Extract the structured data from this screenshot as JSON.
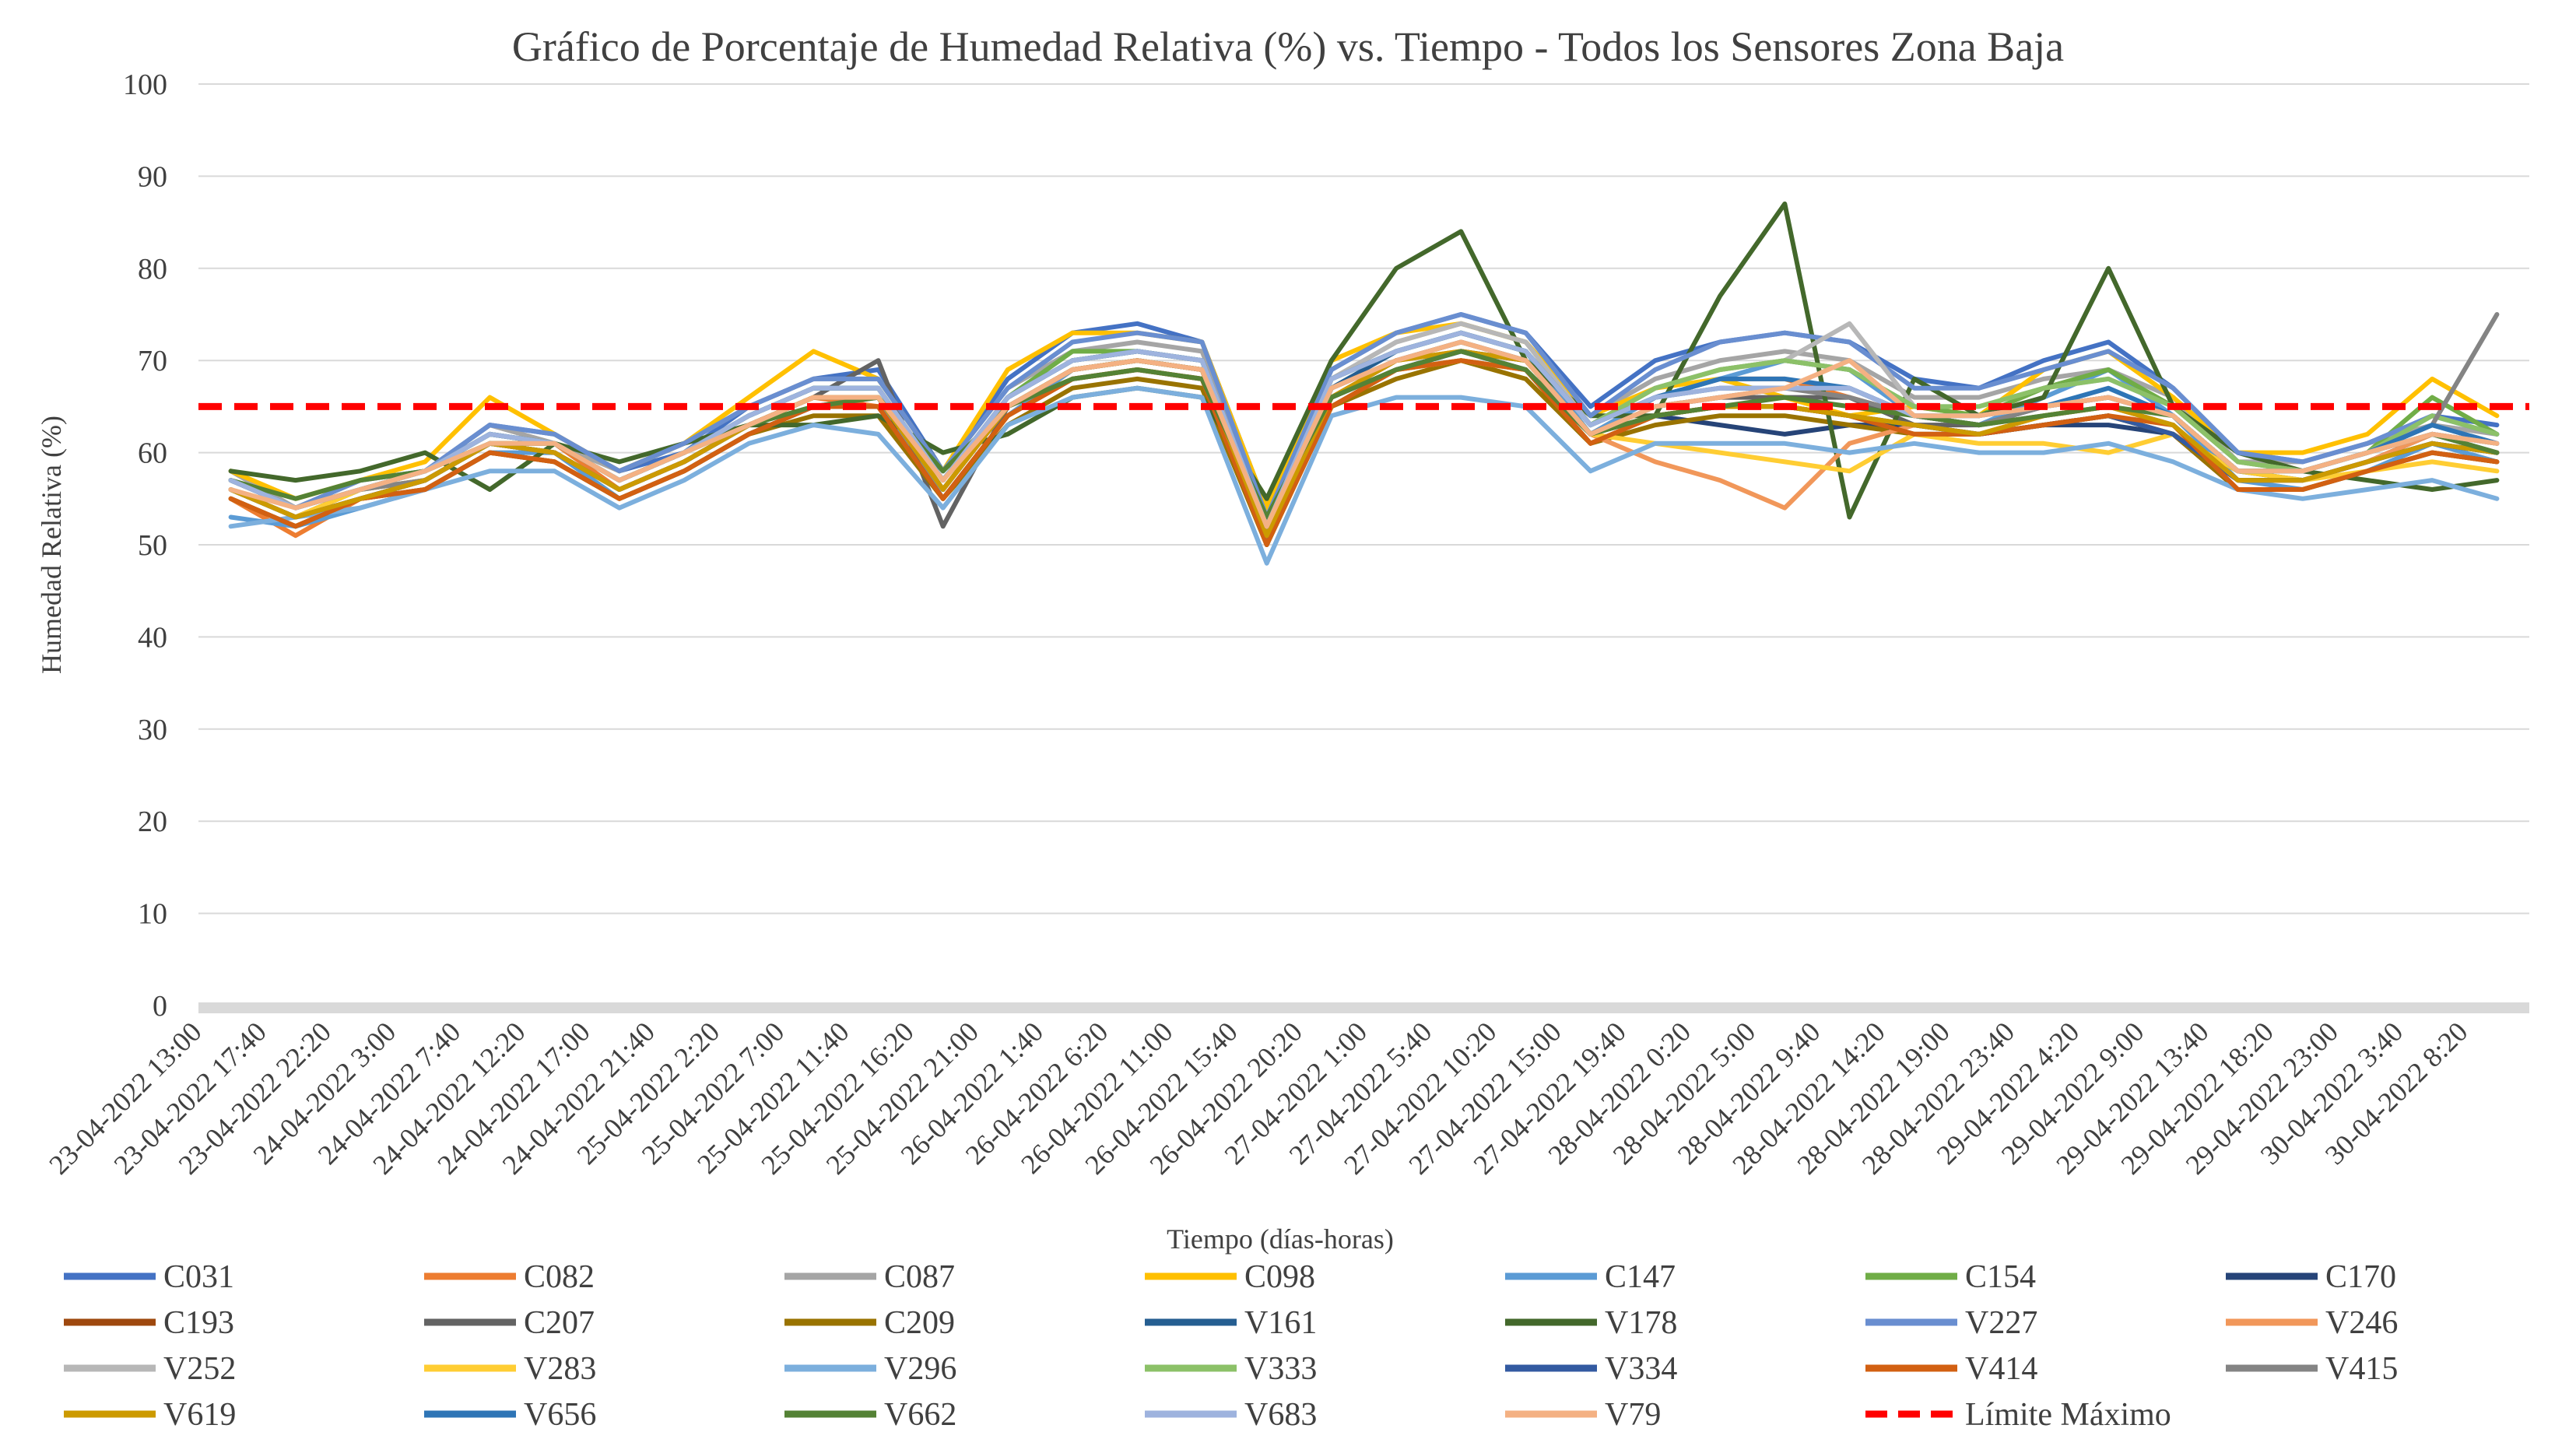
{
  "chart_data": {
    "type": "line",
    "title": "Gráfico de Porcentaje de Humedad Relativa (%) vs. Tiempo - Todos los Sensores Zona Baja",
    "xlabel": "Tiempo (días-horas)",
    "ylabel": "Humedad Relativa (%)",
    "ylim": [
      0,
      100
    ],
    "yticks": [
      0,
      10,
      20,
      30,
      40,
      50,
      60,
      70,
      80,
      90,
      100
    ],
    "grid": true,
    "legend_position": "bottom",
    "categories": [
      "23-04-2022 13:00",
      "23-04-2022 17:40",
      "23-04-2022 22:20",
      "24-04-2022 3:00",
      "24-04-2022 7:40",
      "24-04-2022 12:20",
      "24-04-2022 17:00",
      "24-04-2022 21:40",
      "25-04-2022 2:20",
      "25-04-2022 7:00",
      "25-04-2022 11:40",
      "25-04-2022 16:20",
      "25-04-2022 21:00",
      "26-04-2022 1:40",
      "26-04-2022 6:20",
      "26-04-2022 11:00",
      "26-04-2022 15:40",
      "26-04-2022 20:20",
      "27-04-2022 1:00",
      "27-04-2022 5:40",
      "27-04-2022 10:20",
      "27-04-2022 15:00",
      "27-04-2022 19:40",
      "28-04-2022 0:20",
      "28-04-2022 5:00",
      "28-04-2022 9:40",
      "28-04-2022 14:20",
      "28-04-2022 19:00",
      "28-04-2022 23:40",
      "29-04-2022 4:20",
      "29-04-2022 9:00",
      "29-04-2022 13:40",
      "29-04-2022 18:20",
      "29-04-2022 23:00",
      "30-04-2022 3:40",
      "30-04-2022 8:20"
    ],
    "series": [
      {
        "name": "C031",
        "color": "#4472C4",
        "values": [
          57,
          54,
          56,
          58,
          63,
          62,
          58,
          60,
          65,
          68,
          69,
          58,
          68,
          73,
          74,
          72,
          54,
          69,
          73,
          75,
          73,
          65,
          70,
          72,
          73,
          72,
          68,
          67,
          70,
          72,
          67,
          60,
          59,
          61,
          64,
          63
        ]
      },
      {
        "name": "C082",
        "color": "#ED7D31",
        "values": [
          55,
          51,
          55,
          57,
          61,
          61,
          56,
          59,
          63,
          66,
          65,
          55,
          64,
          69,
          70,
          69,
          51,
          66,
          70,
          71,
          70,
          62,
          66,
          68,
          68,
          66,
          64,
          63,
          65,
          66,
          64,
          57,
          57,
          59,
          62,
          61
        ]
      },
      {
        "name": "C087",
        "color": "#A5A5A5",
        "values": [
          58,
          54,
          57,
          58,
          63,
          61,
          58,
          61,
          65,
          68,
          68,
          58,
          67,
          71,
          72,
          71,
          53,
          68,
          72,
          74,
          72,
          64,
          68,
          70,
          71,
          70,
          66,
          66,
          68,
          69,
          66,
          59,
          59,
          61,
          63,
          62
        ]
      },
      {
        "name": "C098",
        "color": "#FFC000",
        "values": [
          58,
          55,
          57,
          59,
          66,
          62,
          58,
          61,
          66,
          71,
          68,
          58,
          69,
          73,
          73,
          72,
          54,
          70,
          73,
          74,
          72,
          64,
          67,
          68,
          66,
          64,
          65,
          64,
          69,
          71,
          66,
          60,
          60,
          62,
          68,
          64
        ]
      },
      {
        "name": "C147",
        "color": "#5B9BD5",
        "values": [
          53,
          52,
          54,
          56,
          60,
          60,
          55,
          58,
          62,
          65,
          66,
          55,
          64,
          69,
          70,
          69,
          50,
          67,
          71,
          73,
          71,
          62,
          66,
          68,
          70,
          69,
          64,
          63,
          66,
          69,
          64,
          57,
          56,
          58,
          61,
          59
        ]
      },
      {
        "name": "C154",
        "color": "#70AD47",
        "values": [
          56,
          53,
          56,
          58,
          62,
          61,
          57,
          60,
          64,
          67,
          67,
          57,
          66,
          71,
          71,
          70,
          52,
          68,
          71,
          73,
          71,
          63,
          67,
          69,
          70,
          69,
          65,
          64,
          67,
          69,
          65,
          59,
          58,
          60,
          66,
          62
        ]
      },
      {
        "name": "C170",
        "color": "#264478",
        "values": [
          56,
          53,
          55,
          57,
          61,
          60,
          56,
          59,
          63,
          66,
          66,
          56,
          65,
          69,
          70,
          69,
          52,
          66,
          69,
          71,
          70,
          62,
          64,
          63,
          62,
          63,
          63,
          62,
          63,
          63,
          62,
          58,
          57,
          59,
          61,
          60
        ]
      },
      {
        "name": "C193",
        "color": "#9E480E",
        "values": [
          55,
          52,
          55,
          56,
          60,
          59,
          55,
          58,
          62,
          65,
          65,
          55,
          64,
          68,
          69,
          68,
          51,
          65,
          69,
          70,
          69,
          61,
          64,
          65,
          65,
          64,
          62,
          62,
          63,
          64,
          62,
          56,
          56,
          58,
          60,
          59
        ]
      },
      {
        "name": "C207",
        "color": "#636363",
        "values": [
          56,
          53,
          56,
          57,
          61,
          60,
          56,
          59,
          63,
          66,
          70,
          52,
          65,
          69,
          70,
          69,
          52,
          66,
          70,
          72,
          70,
          62,
          65,
          66,
          66,
          66,
          63,
          63,
          64,
          65,
          63,
          57,
          57,
          59,
          62,
          60
        ]
      },
      {
        "name": "C209",
        "color": "#997300",
        "values": [
          55,
          52,
          55,
          56,
          60,
          59,
          55,
          58,
          62,
          64,
          64,
          55,
          63,
          67,
          68,
          67,
          50,
          65,
          68,
          70,
          68,
          61,
          63,
          64,
          64,
          63,
          62,
          62,
          63,
          64,
          62,
          56,
          56,
          58,
          60,
          59
        ]
      },
      {
        "name": "V161",
        "color": "#255E91",
        "values": [
          57,
          54,
          56,
          58,
          62,
          61,
          57,
          60,
          64,
          67,
          67,
          57,
          66,
          70,
          71,
          70,
          52,
          67,
          71,
          73,
          71,
          63,
          66,
          67,
          67,
          67,
          64,
          63,
          65,
          66,
          64,
          58,
          58,
          60,
          62,
          61
        ]
      },
      {
        "name": "V178",
        "color": "#43682B",
        "values": [
          58,
          57,
          58,
          60,
          56,
          61,
          59,
          61,
          63,
          63,
          64,
          60,
          62,
          66,
          67,
          66,
          55,
          70,
          80,
          84,
          70,
          64,
          64,
          77,
          87,
          53,
          68,
          64,
          66,
          80,
          65,
          60,
          58,
          57,
          56,
          57
        ]
      },
      {
        "name": "V227",
        "color": "#698ED0",
        "values": [
          57,
          54,
          57,
          58,
          63,
          62,
          58,
          61,
          65,
          68,
          68,
          58,
          67,
          72,
          73,
          72,
          53,
          69,
          73,
          75,
          73,
          64,
          69,
          72,
          73,
          72,
          67,
          67,
          69,
          71,
          67,
          60,
          59,
          61,
          64,
          62
        ]
      },
      {
        "name": "V246",
        "color": "#F1975A",
        "values": [
          56,
          53,
          56,
          57,
          61,
          60,
          56,
          59,
          63,
          66,
          66,
          56,
          65,
          69,
          70,
          69,
          52,
          67,
          70,
          72,
          70,
          62,
          59,
          57,
          54,
          61,
          63,
          62,
          64,
          65,
          63,
          57,
          57,
          59,
          62,
          61
        ]
      },
      {
        "name": "V252",
        "color": "#B7B7B7",
        "values": [
          57,
          54,
          56,
          58,
          62,
          61,
          57,
          60,
          64,
          67,
          67,
          57,
          66,
          70,
          71,
          70,
          52,
          68,
          72,
          74,
          72,
          63,
          67,
          69,
          70,
          74,
          65,
          65,
          67,
          68,
          65,
          59,
          58,
          60,
          63,
          61
        ]
      },
      {
        "name": "V283",
        "color": "#FFCD33",
        "values": [
          56,
          53,
          56,
          57,
          61,
          60,
          56,
          59,
          63,
          66,
          66,
          56,
          65,
          69,
          70,
          69,
          52,
          66,
          69,
          70,
          69,
          62,
          61,
          60,
          59,
          58,
          62,
          61,
          61,
          60,
          62,
          58,
          57,
          58,
          59,
          58
        ]
      },
      {
        "name": "V296",
        "color": "#7CAFDD",
        "values": [
          52,
          53,
          54,
          56,
          58,
          58,
          54,
          57,
          61,
          63,
          62,
          54,
          63,
          66,
          67,
          66,
          48,
          64,
          66,
          66,
          65,
          58,
          61,
          61,
          61,
          60,
          61,
          60,
          60,
          61,
          59,
          56,
          55,
          56,
          57,
          55
        ]
      },
      {
        "name": "V333",
        "color": "#8CC168",
        "values": [
          57,
          54,
          56,
          58,
          62,
          61,
          57,
          60,
          64,
          67,
          67,
          57,
          66,
          70,
          71,
          70,
          52,
          68,
          71,
          73,
          71,
          63,
          67,
          69,
          70,
          69,
          65,
          65,
          67,
          68,
          65,
          59,
          58,
          60,
          64,
          62
        ]
      },
      {
        "name": "V334",
        "color": "#335AA1",
        "values": [
          56,
          53,
          55,
          57,
          61,
          60,
          56,
          59,
          63,
          66,
          66,
          56,
          65,
          69,
          70,
          69,
          51,
          66,
          69,
          71,
          69,
          62,
          64,
          65,
          65,
          64,
          63,
          62,
          63,
          64,
          62,
          57,
          57,
          59,
          61,
          60
        ]
      },
      {
        "name": "V414",
        "color": "#D26012",
        "values": [
          55,
          52,
          55,
          56,
          60,
          59,
          55,
          58,
          62,
          65,
          65,
          55,
          64,
          68,
          69,
          68,
          50,
          65,
          69,
          70,
          69,
          61,
          64,
          65,
          65,
          64,
          62,
          62,
          63,
          64,
          63,
          56,
          56,
          58,
          60,
          59
        ]
      },
      {
        "name": "V415",
        "color": "#848484",
        "values": [
          57,
          54,
          56,
          57,
          61,
          60,
          56,
          59,
          63,
          66,
          66,
          56,
          65,
          69,
          70,
          69,
          52,
          67,
          70,
          72,
          70,
          62,
          65,
          66,
          67,
          66,
          64,
          63,
          65,
          66,
          64,
          58,
          58,
          60,
          63,
          75
        ]
      },
      {
        "name": "V619",
        "color": "#CC9A00",
        "values": [
          56,
          53,
          55,
          57,
          61,
          60,
          56,
          59,
          63,
          66,
          66,
          56,
          65,
          69,
          70,
          69,
          51,
          66,
          70,
          71,
          70,
          62,
          64,
          65,
          65,
          64,
          63,
          62,
          64,
          65,
          63,
          57,
          57,
          59,
          61,
          60
        ]
      },
      {
        "name": "V656",
        "color": "#2E75B6",
        "values": [
          57,
          54,
          56,
          58,
          62,
          61,
          57,
          60,
          64,
          67,
          67,
          57,
          66,
          70,
          71,
          70,
          52,
          68,
          71,
          73,
          71,
          63,
          66,
          68,
          68,
          67,
          64,
          64,
          65,
          67,
          64,
          58,
          58,
          60,
          63,
          61
        ]
      },
      {
        "name": "V662",
        "color": "#548235",
        "values": [
          57,
          55,
          57,
          58,
          61,
          61,
          57,
          60,
          63,
          65,
          66,
          58,
          65,
          68,
          69,
          68,
          53,
          66,
          69,
          71,
          69,
          62,
          64,
          65,
          66,
          65,
          64,
          63,
          64,
          65,
          64,
          58,
          58,
          60,
          62,
          60
        ]
      },
      {
        "name": "V683",
        "color": "#9EB3DE",
        "values": [
          57,
          54,
          56,
          58,
          62,
          61,
          57,
          60,
          64,
          67,
          67,
          57,
          66,
          70,
          71,
          70,
          52,
          68,
          71,
          73,
          71,
          63,
          66,
          67,
          67,
          67,
          64,
          64,
          65,
          66,
          64,
          58,
          58,
          60,
          62,
          61
        ]
      },
      {
        "name": "V79",
        "color": "#F4B183",
        "values": [
          56,
          54,
          56,
          58,
          61,
          61,
          57,
          60,
          63,
          66,
          66,
          57,
          65,
          69,
          70,
          69,
          52,
          67,
          70,
          72,
          70,
          62,
          65,
          66,
          67,
          70,
          64,
          64,
          65,
          66,
          64,
          58,
          58,
          60,
          62,
          61
        ]
      }
    ],
    "limit": {
      "name": "Límite Máximo",
      "value": 65,
      "color": "#FF0000"
    }
  }
}
